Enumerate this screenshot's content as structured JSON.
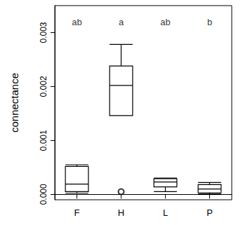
{
  "chart_data": {
    "type": "boxplot",
    "ylabel": "connectance",
    "categories": [
      "F",
      "H",
      "L",
      "P"
    ],
    "boxes": [
      [
        2e-05,
        5e-05,
        0.00019,
        0.00052,
        0.00055
      ],
      [
        0.00146,
        0.00146,
        0.00202,
        0.00238,
        0.00278
      ],
      [
        5e-05,
        0.00014,
        0.00023,
        0.00029,
        0.0003
      ],
      [
        1e-05,
        3e-05,
        0.0001,
        0.00018,
        0.00022
      ]
    ],
    "outliers": [
      {
        "category": "H",
        "value": 5e-05
      }
    ],
    "annotations": [
      {
        "category": "F",
        "y": 0.0032,
        "text": "ab"
      },
      {
        "category": "H",
        "y": 0.0032,
        "text": "a"
      },
      {
        "category": "L",
        "y": 0.0032,
        "text": "ab"
      },
      {
        "category": "P",
        "y": 0.0032,
        "text": "b"
      }
    ],
    "ylim": [
      -0.0001,
      0.0035
    ],
    "yticks": [
      {
        "value": 0,
        "label": "0.000"
      },
      {
        "value": 0.001,
        "label": "0.001"
      },
      {
        "value": 0.002,
        "label": "0.002"
      },
      {
        "value": 0.003,
        "label": "0.003"
      }
    ],
    "color": "#000000"
  }
}
